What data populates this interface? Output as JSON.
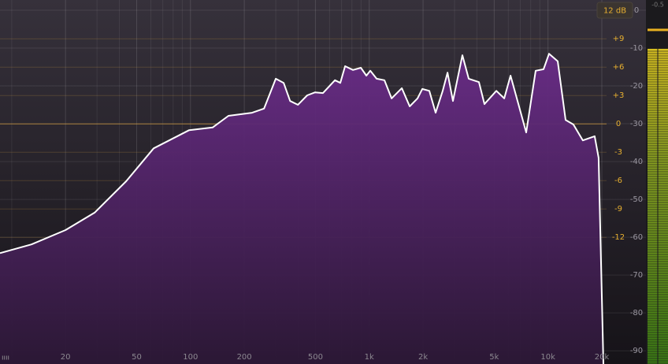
{
  "chart_data": {
    "type": "spectrum",
    "range_button": "12 dB",
    "peak_readout": -0.5,
    "xscale": "log",
    "xlim": [
      8.6,
      31900
    ],
    "xticks": [
      20,
      50,
      100,
      200,
      500,
      {
        "value": 1000,
        "label": "1k"
      },
      {
        "value": 2000,
        "label": "2k"
      },
      {
        "value": 5000,
        "label": "5k"
      },
      {
        "value": 10000,
        "label": "10k"
      },
      {
        "value": 20000,
        "label": "20k"
      }
    ],
    "x_minor_ticks": [
      10,
      30,
      40,
      60,
      70,
      80,
      90,
      300,
      400,
      600,
      700,
      800,
      900,
      3000,
      4000,
      6000,
      7000,
      8000,
      9000
    ],
    "ylim": [
      -93.5,
      2.7
    ],
    "yticks": [
      0,
      -10,
      -20,
      -30,
      -40,
      -50,
      -60,
      -70,
      -80,
      -90
    ],
    "y2lim": [
      -25.4,
      13.1
    ],
    "y2ticks": [
      {
        "value": 9,
        "label": "+9"
      },
      {
        "value": 6,
        "label": "+6"
      },
      {
        "value": 3,
        "label": "+3"
      },
      0,
      -3,
      -6,
      -9,
      -12
    ],
    "grid": true,
    "color": "#ffffff",
    "fill_color": "#5e2a78",
    "x": [
      8.6,
      12.9,
      20,
      29.1,
      43.7,
      62.2,
      98.3,
      133,
      163,
      221,
      258,
      300,
      332,
      361,
      399,
      450,
      498,
      551,
      643,
      689,
      733,
      811,
      898,
      964,
      1014,
      1100,
      1216,
      1334,
      1521,
      1684,
      1862,
      1980,
      2168,
      2352,
      2577,
      2740,
      2940,
      3320,
      3600,
      4110,
      4410,
      5140,
      5690,
      6170,
      6690,
      7550,
      8530,
      9440,
      10140,
      11330,
      12540,
      13870,
      15670,
      18240,
      19190,
      20420
    ],
    "values": [
      -64.2,
      -61.9,
      -58.1,
      -53.5,
      -45.2,
      -36.5,
      -31.7,
      -31.0,
      -27.9,
      -27.1,
      -26.0,
      -18.1,
      -19.2,
      -24.0,
      -25.0,
      -22.5,
      -21.7,
      -21.9,
      -18.5,
      -19.2,
      -14.8,
      -15.8,
      -15.2,
      -17.3,
      -16.0,
      -18.1,
      -18.5,
      -23.3,
      -20.6,
      -25.4,
      -23.3,
      -20.8,
      -21.3,
      -27.1,
      -21.3,
      -16.5,
      -24.0,
      -11.9,
      -18.1,
      -19.0,
      -24.8,
      -21.3,
      -23.3,
      -17.3,
      -23.3,
      -32.3,
      -16.0,
      -15.6,
      -11.5,
      -13.5,
      -29.0,
      -30.2,
      -34.4,
      -33.3,
      -39.0,
      -93.5
    ],
    "meter": {
      "level": -10.2,
      "peak": -5.2
    }
  }
}
